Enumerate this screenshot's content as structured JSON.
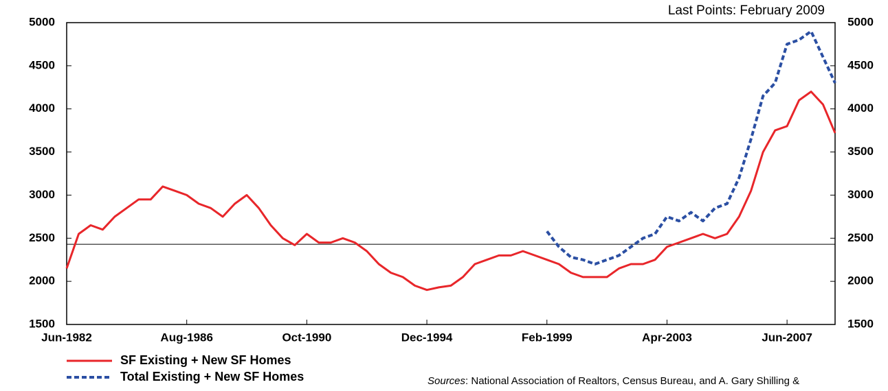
{
  "chart_data": {
    "type": "line",
    "annotation": "Last Points: February 2009",
    "source_label": "Sources",
    "source_text": ": National Association of Realtors, Census Bureau, and A. Gary Shilling &",
    "categories": [
      "Jun-1982",
      null,
      null,
      null,
      null,
      null,
      null,
      null,
      null,
      null,
      "Aug-1986",
      null,
      null,
      null,
      null,
      null,
      null,
      null,
      null,
      null,
      "Oct-1990",
      null,
      null,
      null,
      null,
      null,
      null,
      null,
      null,
      null,
      "Dec-1994",
      null,
      null,
      null,
      null,
      null,
      null,
      null,
      null,
      null,
      "Feb-1999",
      null,
      null,
      null,
      null,
      null,
      null,
      null,
      null,
      null,
      "Apr-2003",
      null,
      null,
      null,
      null,
      null,
      null,
      null,
      null,
      null,
      "Jun-2007",
      null,
      null,
      null,
      null
    ],
    "series": [
      {
        "name": "SF Existing + New SF Homes",
        "color": "#e8262a",
        "dash": false,
        "values": [
          2150,
          2550,
          2650,
          2600,
          2750,
          2850,
          2950,
          2950,
          3100,
          3050,
          3000,
          2900,
          2850,
          2750,
          2900,
          3000,
          2850,
          2650,
          2500,
          2420,
          2550,
          2450,
          2450,
          2500,
          2450,
          2350,
          2200,
          2100,
          2050,
          1950,
          1900,
          1930,
          1950,
          2050,
          2200,
          2250,
          2300,
          2300,
          2350,
          2300,
          2250,
          2200,
          2100,
          2050,
          2050,
          2050,
          2150,
          2200,
          2200,
          2250,
          2400,
          2450,
          2500,
          2550,
          2500,
          2550,
          2750,
          3050,
          3500,
          3750,
          3800,
          4100,
          4200,
          4050,
          3720
        ]
      },
      {
        "name": "Total Existing + New SF Homes",
        "color": "#2b4fa3",
        "dash": true,
        "values": [
          null,
          null,
          null,
          null,
          null,
          null,
          null,
          null,
          null,
          null,
          null,
          null,
          null,
          null,
          null,
          null,
          null,
          null,
          null,
          null,
          null,
          null,
          null,
          null,
          null,
          null,
          null,
          null,
          null,
          null,
          null,
          null,
          null,
          null,
          null,
          null,
          null,
          null,
          null,
          null,
          2580,
          2400,
          2280,
          2250,
          2200,
          2250,
          2300,
          2400,
          2500,
          2550,
          2750,
          2700,
          2800,
          2700,
          2850,
          2900,
          3200,
          3650,
          4150,
          4300,
          4750,
          4800,
          4900,
          4600,
          4300
        ]
      }
    ],
    "reference_line": 2430,
    "ylim": [
      1500,
      5000
    ],
    "yticks": [
      1500,
      2000,
      2500,
      3000,
      3500,
      4000,
      4500,
      5000
    ],
    "y2lim": [
      1500,
      5000
    ],
    "y2ticks": [
      1500,
      2000,
      2500,
      3000,
      3500,
      4000,
      4500,
      5000
    ]
  }
}
